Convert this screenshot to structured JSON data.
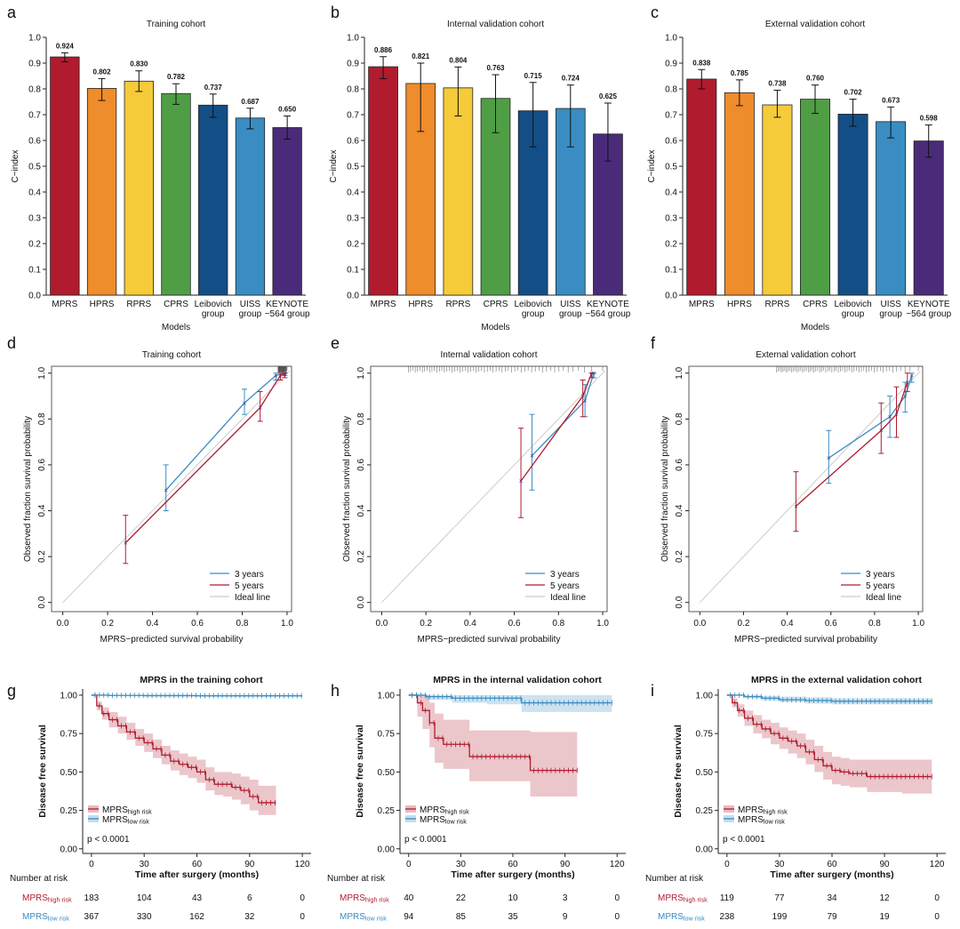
{
  "colors": {
    "mprs": "#b01c2e",
    "hprs": "#ef8c2c",
    "rprs": "#f5cb3a",
    "cprs": "#4f9e45",
    "leibovich": "#134e87",
    "uiss": "#3a8dc2",
    "keynote": "#4a2b79",
    "three_years": "#3a8dc2",
    "five_years": "#b01c2e",
    "ideal": "#cccccc",
    "high_risk": "#b01c2e",
    "low_risk": "#3a8dc2"
  },
  "chart_data": [
    {
      "panel": "a",
      "type": "bar",
      "title": "Training cohort",
      "xlabel": "Models",
      "ylabel": "C−index",
      "ylim": [
        0,
        1
      ],
      "yticks": [
        "0.0",
        "0.1",
        "0.2",
        "0.3",
        "0.4",
        "0.5",
        "0.6",
        "0.7",
        "0.8",
        "0.9",
        "1.0"
      ],
      "categories": [
        [
          "MPRS"
        ],
        [
          "HPRS"
        ],
        [
          "RPRS"
        ],
        [
          "CPRS"
        ],
        [
          "Leibovich",
          "group"
        ],
        [
          "UISS",
          "group"
        ],
        [
          "KEYNOTE",
          "−564 group"
        ]
      ],
      "values": [
        0.924,
        0.802,
        0.83,
        0.782,
        0.737,
        0.687,
        0.65
      ],
      "labels": [
        "0.924",
        "0.802",
        "0.830",
        "0.782",
        "0.737",
        "0.687",
        "0.650"
      ],
      "err_low": [
        0.905,
        0.755,
        0.79,
        0.74,
        0.69,
        0.645,
        0.605
      ],
      "err_high": [
        0.94,
        0.84,
        0.87,
        0.82,
        0.78,
        0.725,
        0.695
      ]
    },
    {
      "panel": "b",
      "type": "bar",
      "title": "Internal validation cohort",
      "xlabel": "Models",
      "ylabel": "C−index",
      "ylim": [
        0,
        1
      ],
      "yticks": [
        "0.0",
        "0.1",
        "0.2",
        "0.3",
        "0.4",
        "0.5",
        "0.6",
        "0.7",
        "0.8",
        "0.9",
        "1.0"
      ],
      "categories": [
        [
          "MPRS"
        ],
        [
          "HPRS"
        ],
        [
          "RPRS"
        ],
        [
          "CPRS"
        ],
        [
          "Leibovich",
          "group"
        ],
        [
          "UISS",
          "group"
        ],
        [
          "KEYNOTE",
          "−564 group"
        ]
      ],
      "values": [
        0.886,
        0.821,
        0.804,
        0.763,
        0.715,
        0.724,
        0.625
      ],
      "labels": [
        "0.886",
        "0.821",
        "0.804",
        "0.763",
        "0.715",
        "0.724",
        "0.625"
      ],
      "err_low": [
        0.84,
        0.635,
        0.695,
        0.63,
        0.575,
        0.575,
        0.52
      ],
      "err_high": [
        0.925,
        0.9,
        0.885,
        0.855,
        0.825,
        0.815,
        0.745
      ]
    },
    {
      "panel": "c",
      "type": "bar",
      "title": "External validation cohort",
      "xlabel": "Models",
      "ylabel": "C−index",
      "ylim": [
        0,
        1
      ],
      "yticks": [
        "0.0",
        "0.1",
        "0.2",
        "0.3",
        "0.4",
        "0.5",
        "0.6",
        "0.7",
        "0.8",
        "0.9",
        "1.0"
      ],
      "categories": [
        [
          "MPRS"
        ],
        [
          "HPRS"
        ],
        [
          "RPRS"
        ],
        [
          "CPRS"
        ],
        [
          "Leibovich",
          "group"
        ],
        [
          "UISS",
          "group"
        ],
        [
          "KEYNOTE",
          "−564 group"
        ]
      ],
      "values": [
        0.838,
        0.785,
        0.738,
        0.76,
        0.702,
        0.673,
        0.598
      ],
      "labels": [
        "0.838",
        "0.785",
        "0.738",
        "0.760",
        "0.702",
        "0.673",
        "0.598"
      ],
      "err_low": [
        0.8,
        0.735,
        0.69,
        0.705,
        0.655,
        0.61,
        0.535
      ],
      "err_high": [
        0.875,
        0.835,
        0.795,
        0.815,
        0.76,
        0.73,
        0.66
      ]
    },
    {
      "panel": "d",
      "type": "line",
      "title": "Training cohort",
      "xlabel": "MPRS−predicted survival probability",
      "ylabel": "Observed fraction survival probability",
      "xlim": [
        -0.05,
        1.02
      ],
      "ylim": [
        -0.04,
        1.03
      ],
      "xticks": [
        "0.0",
        "0.2",
        "0.4",
        "0.6",
        "0.8",
        "1.0"
      ],
      "yticks": [
        "0.0",
        "0.2",
        "0.4",
        "0.6",
        "0.8",
        "1.0"
      ],
      "legend": [
        "3 years",
        "5 years",
        "Ideal line"
      ],
      "series": [
        {
          "name": "3 years",
          "points": [
            [
              0.46,
              0.49,
              0.4,
              0.6
            ],
            [
              0.81,
              0.87,
              0.82,
              0.93
            ],
            [
              0.95,
              0.99,
              0.97,
              1.0
            ],
            [
              0.99,
              1.0,
              0.99,
              1.0
            ]
          ]
        },
        {
          "name": "5 years",
          "points": [
            [
              0.28,
              0.26,
              0.17,
              0.38
            ],
            [
              0.88,
              0.85,
              0.79,
              0.92
            ],
            [
              0.97,
              0.99,
              0.97,
              1.0
            ],
            [
              0.99,
              0.995,
              0.98,
              1.0
            ]
          ]
        }
      ],
      "rug_range": [
        0.96,
        1.0
      ]
    },
    {
      "panel": "e",
      "type": "line",
      "title": "Internal validation cohort",
      "xlabel": "MPRS−predicted survival probability",
      "ylabel": "Observed fraction survival probability",
      "xlim": [
        -0.05,
        1.02
      ],
      "ylim": [
        -0.04,
        1.03
      ],
      "xticks": [
        "0.0",
        "0.2",
        "0.4",
        "0.6",
        "0.8",
        "1.0"
      ],
      "yticks": [
        "0.0",
        "0.2",
        "0.4",
        "0.6",
        "0.8",
        "1.0"
      ],
      "legend": [
        "3 years",
        "5 years",
        "Ideal line"
      ],
      "series": [
        {
          "name": "3 years",
          "points": [
            [
              0.68,
              0.64,
              0.49,
              0.82
            ],
            [
              0.92,
              0.88,
              0.81,
              0.95
            ],
            [
              0.96,
              1.0,
              0.98,
              1.0
            ]
          ]
        },
        {
          "name": "5 years",
          "points": [
            [
              0.63,
              0.53,
              0.37,
              0.76
            ],
            [
              0.91,
              0.9,
              0.81,
              0.97
            ],
            [
              0.95,
              1.0,
              0.98,
              1.0
            ]
          ]
        }
      ],
      "rug_range": [
        0.12,
        1.0
      ]
    },
    {
      "panel": "f",
      "type": "line",
      "title": "External validation cohort",
      "xlabel": "MPRS−predicted survival probability",
      "ylabel": "Observed fraction survival probability",
      "xlim": [
        -0.05,
        1.02
      ],
      "ylim": [
        -0.04,
        1.03
      ],
      "xticks": [
        "0.0",
        "0.2",
        "0.4",
        "0.6",
        "0.8",
        "1.0"
      ],
      "yticks": [
        "0.0",
        "0.2",
        "0.4",
        "0.6",
        "0.8",
        "1.0"
      ],
      "legend": [
        "3 years",
        "5 years",
        "Ideal line"
      ],
      "series": [
        {
          "name": "3 years",
          "points": [
            [
              0.59,
              0.63,
              0.52,
              0.75
            ],
            [
              0.87,
              0.81,
              0.72,
              0.9
            ],
            [
              0.94,
              0.9,
              0.83,
              0.96
            ],
            [
              0.97,
              0.99,
              0.96,
              1.0
            ]
          ]
        },
        {
          "name": "5 years",
          "points": [
            [
              0.44,
              0.42,
              0.31,
              0.57
            ],
            [
              0.83,
              0.75,
              0.65,
              0.87
            ],
            [
              0.9,
              0.82,
              0.72,
              0.94
            ],
            [
              0.95,
              0.96,
              0.92,
              1.0
            ]
          ]
        }
      ],
      "rug_range": [
        0.35,
        1.0
      ]
    },
    {
      "panel": "g",
      "type": "line",
      "title": "MPRS in the training cohort",
      "xlabel": "Time after surgery (months)",
      "ylabel": "Disease free survival",
      "xlim": [
        -5,
        125
      ],
      "ylim": [
        -0.03,
        1.04
      ],
      "xticks": [
        "0",
        "30",
        "60",
        "90",
        "120"
      ],
      "yticks": [
        "0.00",
        "0.25",
        "0.50",
        "0.75",
        "1.00"
      ],
      "pvalue": "p < 0.0001",
      "legend": [
        {
          "main": "MPRS",
          "sub": "high risk"
        },
        {
          "main": "MPRS",
          "sub": "low risk"
        }
      ],
      "series": [
        {
          "name": "high risk",
          "x": [
            0,
            3,
            6,
            10,
            15,
            20,
            25,
            30,
            35,
            40,
            45,
            50,
            55,
            60,
            65,
            70,
            75,
            80,
            85,
            90,
            95,
            105
          ],
          "y": [
            1.0,
            0.93,
            0.88,
            0.84,
            0.8,
            0.76,
            0.72,
            0.69,
            0.65,
            0.61,
            0.57,
            0.55,
            0.53,
            0.5,
            0.45,
            0.42,
            0.42,
            0.4,
            0.38,
            0.34,
            0.3,
            0.3
          ],
          "lo": [
            1.0,
            0.9,
            0.84,
            0.79,
            0.75,
            0.71,
            0.67,
            0.63,
            0.59,
            0.55,
            0.51,
            0.48,
            0.46,
            0.43,
            0.38,
            0.35,
            0.34,
            0.32,
            0.29,
            0.25,
            0.22,
            0.22
          ],
          "hi": [
            1.0,
            0.96,
            0.92,
            0.89,
            0.86,
            0.82,
            0.78,
            0.75,
            0.71,
            0.67,
            0.64,
            0.62,
            0.6,
            0.58,
            0.53,
            0.5,
            0.5,
            0.49,
            0.47,
            0.45,
            0.41,
            0.41
          ]
        },
        {
          "name": "low risk",
          "x": [
            0,
            10,
            30,
            60,
            90,
            120
          ],
          "y": [
            1.0,
            0.998,
            0.997,
            0.996,
            0.996,
            0.996
          ],
          "lo": [
            1.0,
            0.993,
            0.99,
            0.988,
            0.988,
            0.988
          ],
          "hi": [
            1.0,
            1.0,
            1.0,
            1.0,
            1.0,
            1.0
          ]
        }
      ],
      "risk_table": {
        "title": "Number at risk",
        "times": [
          0,
          30,
          60,
          90,
          120
        ],
        "rows": [
          {
            "group": {
              "main": "MPRS",
              "sub": "high risk"
            },
            "counts": [
              183,
              104,
              43,
              6,
              0
            ]
          },
          {
            "group": {
              "main": "MPRS",
              "sub": "low risk"
            },
            "counts": [
              367,
              330,
              162,
              32,
              0
            ]
          }
        ]
      }
    },
    {
      "panel": "h",
      "type": "line",
      "title": "MPRS in the internal validation cohort",
      "xlabel": "Time after surgery (months)",
      "ylabel": "Disease free survival",
      "xlim": [
        -5,
        125
      ],
      "ylim": [
        -0.03,
        1.04
      ],
      "xticks": [
        "0",
        "30",
        "60",
        "90",
        "120"
      ],
      "yticks": [
        "0.00",
        "0.25",
        "0.50",
        "0.75",
        "1.00"
      ],
      "pvalue": "p < 0.0001",
      "legend": [
        {
          "main": "MPRS",
          "sub": "high risk"
        },
        {
          "main": "MPRS",
          "sub": "low risk"
        }
      ],
      "series": [
        {
          "name": "high risk",
          "x": [
            0,
            5,
            8,
            12,
            15,
            20,
            35,
            55,
            70,
            97
          ],
          "y": [
            1.0,
            0.95,
            0.9,
            0.82,
            0.72,
            0.68,
            0.6,
            0.6,
            0.51,
            0.51
          ],
          "lo": [
            1.0,
            0.86,
            0.78,
            0.66,
            0.56,
            0.52,
            0.44,
            0.44,
            0.34,
            0.34
          ],
          "hi": [
            1.0,
            1.0,
            1.0,
            0.95,
            0.88,
            0.84,
            0.77,
            0.77,
            0.76,
            0.76
          ]
        },
        {
          "name": "low risk",
          "x": [
            0,
            10,
            25,
            45,
            65,
            117
          ],
          "y": [
            1.0,
            0.99,
            0.98,
            0.98,
            0.95,
            0.95
          ],
          "lo": [
            1.0,
            0.97,
            0.95,
            0.94,
            0.89,
            0.89
          ],
          "hi": [
            1.0,
            1.0,
            1.0,
            1.0,
            1.0,
            1.0
          ]
        }
      ],
      "risk_table": {
        "title": "Number at risk",
        "times": [
          0,
          30,
          60,
          90,
          120
        ],
        "rows": [
          {
            "group": {
              "main": "MPRS",
              "sub": "high risk"
            },
            "counts": [
              40,
              22,
              10,
              3,
              0
            ]
          },
          {
            "group": {
              "main": "MPRS",
              "sub": "low risk"
            },
            "counts": [
              94,
              85,
              35,
              9,
              0
            ]
          }
        ]
      }
    },
    {
      "panel": "i",
      "type": "line",
      "title": "MPRS in the external validation cohort",
      "xlabel": "Time after surgery (months)",
      "ylabel": "Disease free survival",
      "xlim": [
        -5,
        125
      ],
      "ylim": [
        -0.03,
        1.04
      ],
      "xticks": [
        "0",
        "30",
        "60",
        "90",
        "120"
      ],
      "yticks": [
        "0.00",
        "0.25",
        "0.50",
        "0.75",
        "1.00"
      ],
      "pvalue": "p < 0.0001",
      "legend": [
        {
          "main": "MPRS",
          "sub": "high risk"
        },
        {
          "main": "MPRS",
          "sub": "low risk"
        }
      ],
      "series": [
        {
          "name": "high risk",
          "x": [
            0,
            3,
            6,
            10,
            15,
            20,
            25,
            30,
            35,
            40,
            45,
            50,
            55,
            60,
            65,
            70,
            80,
            90,
            100,
            117
          ],
          "y": [
            1.0,
            0.95,
            0.9,
            0.85,
            0.81,
            0.78,
            0.75,
            0.72,
            0.7,
            0.67,
            0.63,
            0.58,
            0.54,
            0.51,
            0.5,
            0.49,
            0.47,
            0.47,
            0.47,
            0.47
          ],
          "lo": [
            1.0,
            0.92,
            0.86,
            0.8,
            0.75,
            0.72,
            0.68,
            0.65,
            0.62,
            0.59,
            0.55,
            0.5,
            0.45,
            0.42,
            0.41,
            0.4,
            0.37,
            0.37,
            0.36,
            0.36
          ],
          "hi": [
            1.0,
            0.98,
            0.94,
            0.9,
            0.87,
            0.84,
            0.82,
            0.79,
            0.77,
            0.75,
            0.71,
            0.67,
            0.63,
            0.6,
            0.59,
            0.58,
            0.58,
            0.58,
            0.58,
            0.58
          ]
        },
        {
          "name": "low risk",
          "x": [
            0,
            10,
            20,
            30,
            45,
            60,
            90,
            117
          ],
          "y": [
            1.0,
            0.99,
            0.98,
            0.97,
            0.965,
            0.96,
            0.96,
            0.96
          ],
          "lo": [
            1.0,
            0.98,
            0.965,
            0.955,
            0.945,
            0.94,
            0.94,
            0.94
          ],
          "hi": [
            1.0,
            1.0,
            0.995,
            0.99,
            0.985,
            0.98,
            0.98,
            0.98
          ]
        }
      ],
      "risk_table": {
        "title": "Number at risk",
        "times": [
          0,
          30,
          60,
          90,
          120
        ],
        "rows": [
          {
            "group": {
              "main": "MPRS",
              "sub": "high risk"
            },
            "counts": [
              119,
              77,
              34,
              12,
              0
            ]
          },
          {
            "group": {
              "main": "MPRS",
              "sub": "low risk"
            },
            "counts": [
              238,
              199,
              79,
              19,
              0
            ]
          }
        ]
      }
    }
  ]
}
